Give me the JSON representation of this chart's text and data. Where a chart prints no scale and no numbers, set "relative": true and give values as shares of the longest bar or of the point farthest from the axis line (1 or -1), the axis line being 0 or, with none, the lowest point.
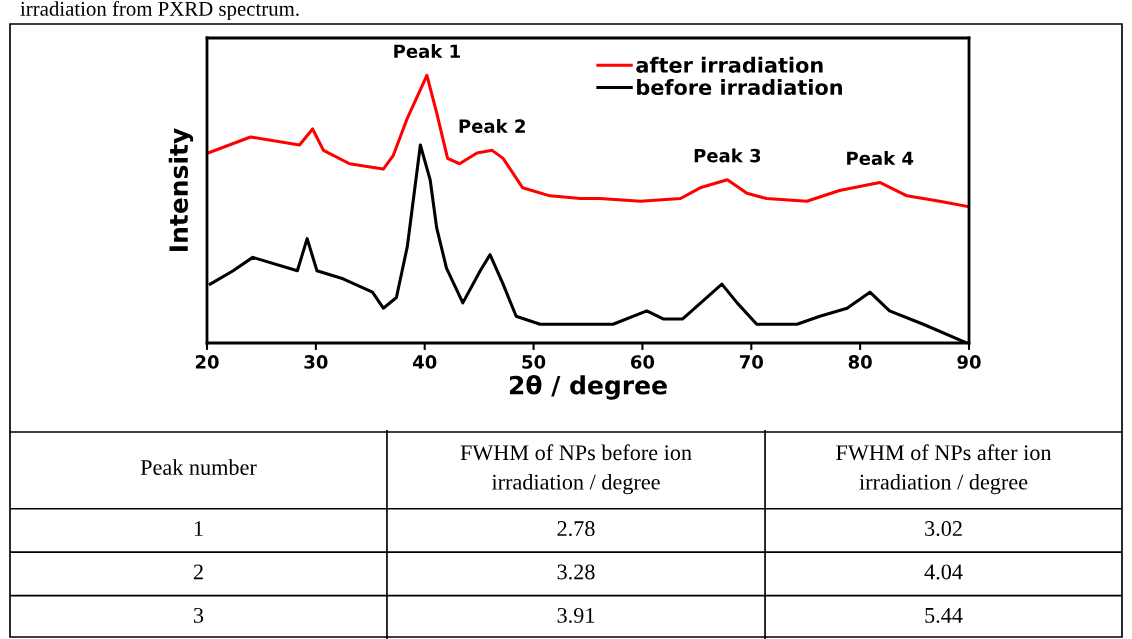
{
  "chart_data": [
    {
      "type": "line",
      "relative": true,
      "xlabel": "2θ / degree",
      "ylabel": "Intensity",
      "xlim": [
        20,
        90
      ],
      "xticks": [
        20,
        30,
        40,
        50,
        60,
        70,
        80,
        90
      ],
      "tick_labels": "x",
      "legend": "top right",
      "grid": false,
      "marker": "none",
      "line_style": "solid",
      "series": [
        {
          "name": "after irradiation",
          "color": "#ff0000",
          "x": [
            20.1,
            24,
            28.5,
            29.7,
            30.7,
            33.1,
            34.7,
            36.2,
            37.1,
            38.4,
            39.3,
            40.2,
            41.1,
            42.1,
            43.2,
            44.8,
            46.2,
            47.2,
            49.0,
            51.5,
            54.3,
            56.1,
            59.8,
            63.5,
            65.3,
            67.8,
            69.6,
            71.4,
            75.1,
            78.1,
            81.8,
            84.3,
            87.3,
            89.9
          ],
          "values": [
            0.71,
            0.77,
            0.74,
            0.8,
            0.72,
            0.67,
            0.66,
            0.65,
            0.7,
            0.84,
            0.92,
            1.0,
            0.86,
            0.69,
            0.67,
            0.71,
            0.72,
            0.69,
            0.58,
            0.55,
            0.54,
            0.54,
            0.53,
            0.54,
            0.58,
            0.61,
            0.56,
            0.54,
            0.53,
            0.57,
            0.6,
            0.55,
            0.53,
            0.51
          ]
        },
        {
          "name": "before irradiation",
          "color": "#000000",
          "x": [
            20.3,
            22.4,
            24.2,
            28.3,
            29.2,
            30.1,
            32.5,
            35.2,
            36.2,
            37.4,
            38.4,
            39.6,
            40.5,
            41.1,
            42.0,
            43.5,
            45.1,
            46.0,
            47.2,
            48.4,
            50.6,
            56.1,
            57.3,
            60.4,
            61.9,
            63.7,
            65.9,
            67.3,
            68.7,
            70.5,
            74.2,
            76.3,
            78.8,
            80.9,
            82.7,
            85.8,
            89.8
          ],
          "values": [
            0.22,
            0.27,
            0.32,
            0.27,
            0.39,
            0.27,
            0.24,
            0.19,
            0.13,
            0.17,
            0.36,
            0.74,
            0.61,
            0.43,
            0.28,
            0.15,
            0.27,
            0.33,
            0.22,
            0.1,
            0.07,
            0.07,
            0.07,
            0.12,
            0.09,
            0.09,
            0.17,
            0.22,
            0.15,
            0.07,
            0.07,
            0.1,
            0.13,
            0.19,
            0.12,
            0.07,
            0.0
          ]
        }
      ],
      "annotations": [
        "irradiation from PXRD spectrum.",
        {
          "text": "Peak 1",
          "x": 40.2,
          "y": 1.0
        },
        {
          "text": "Peak 2",
          "x": 46.2,
          "y": 0.72
        },
        {
          "text": "Peak 3",
          "x": 67.8,
          "y": 0.61
        },
        {
          "text": "Peak 4",
          "x": 81.8,
          "y": 0.6
        }
      ]
    },
    {
      "type": "other",
      "annotations": [
        "Peak number",
        "FWHM of NPs before ion\nirradiation / degree",
        "FWHM of NPs after ion\nirradiation / degree",
        "1",
        "2.78",
        "3.02",
        "2",
        "3.28",
        "4.04",
        "3",
        "3.91",
        "5.44"
      ]
    }
  ]
}
